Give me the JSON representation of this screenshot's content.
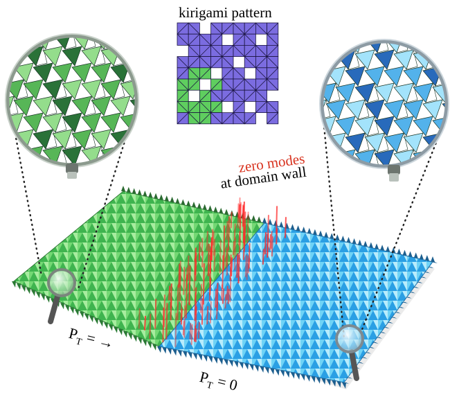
{
  "title": "kirigami pattern",
  "zero_modes": "zero modes",
  "domain_wall": "at domain wall",
  "pt_left": {
    "p": "P",
    "sub": "T",
    "rest": " = →"
  },
  "pt_right": {
    "p": "P",
    "sub": "T",
    "rest": " = 0"
  },
  "colors": {
    "green": "#5fce5f",
    "green_dark": "#2c8a3a",
    "blue": "#4fc3f0",
    "blue_dark": "#1e78c8",
    "purple": "#7b6ce0",
    "red": "#ff2a2a",
    "text_red": "#d8321e"
  },
  "icons": [
    "magnifier-icon-left",
    "magnifier-icon-right",
    "loupe-handle-icon"
  ]
}
